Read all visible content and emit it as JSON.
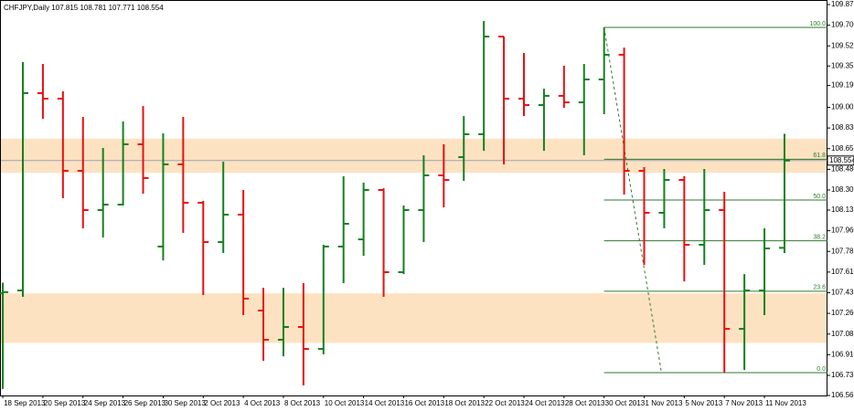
{
  "chart_data": {
    "type": "ohlc",
    "title": "CHFJPY,Daily  107.815 108.781 107.771 108.554",
    "categories": [
      "18 Sep 2013",
      null,
      "20 Sep 2013",
      null,
      "24 Sep 2013",
      null,
      "26 Sep 2013",
      null,
      "30 Sep 2013",
      null,
      "2 Oct 2013",
      null,
      "4 Oct 2013",
      null,
      "8 Oct 2013",
      null,
      "10 Oct 2013",
      null,
      "14 Oct 2013",
      null,
      "16 Oct 2013",
      null,
      "18 Oct 2013",
      null,
      "22 Oct 2013",
      null,
      "24 Oct 2013",
      null,
      "28 Oct 2013",
      null,
      "30 Oct 2013",
      null,
      "1 Nov 2013",
      null,
      "5 Nov 2013",
      null,
      "7 Nov 2013",
      null,
      "11 Nov 2013",
      null
    ],
    "open": [
      107.43,
      107.454,
      109.125,
      109.078,
      108.467,
      108.135,
      108.181,
      108.692,
      107.826,
      108.522,
      108.197,
      107.864,
      108.096,
      107.284,
      107.037,
      107.145,
      106.959,
      107.826,
      107.887,
      108.305,
      107.609,
      108.135,
      108.429,
      108.583,
      108.777,
      109.604,
      109.078,
      109.024,
      109.102,
      109.047,
      109.241,
      109.45,
      108.467,
      108.112,
      108.39,
      107.841,
      108.135,
      107.129,
      107.454,
      107.815
    ],
    "high": [
      107.52,
      109.388,
      109.372,
      109.14,
      108.924,
      108.661,
      108.885,
      109.016,
      108.785,
      108.924,
      108.212,
      108.545,
      108.305,
      107.477,
      107.477,
      107.516,
      107.841,
      108.421,
      108.367,
      108.32,
      108.174,
      108.599,
      108.692,
      108.931,
      109.736,
      109.604,
      109.465,
      109.163,
      109.357,
      109.372,
      109.682,
      109.511,
      108.498,
      108.483,
      108.421,
      108.483,
      108.29,
      107.593,
      107.98,
      108.781
    ],
    "low": [
      106.62,
      107.4,
      108.908,
      108.235,
      107.98,
      107.903,
      108.174,
      108.274,
      107.709,
      107.942,
      107.416,
      107.771,
      107.246,
      106.859,
      106.897,
      106.65,
      106.913,
      107.516,
      107.748,
      107.4,
      107.593,
      107.864,
      108.158,
      108.382,
      108.637,
      108.522,
      108.931,
      108.637,
      109.001,
      108.599,
      108.947,
      108.266,
      107.671,
      107.98,
      107.532,
      107.671,
      106.758,
      106.781,
      107.246,
      107.771
    ],
    "close": [
      107.44,
      109.125,
      109.078,
      108.467,
      108.135,
      108.181,
      108.692,
      108.406,
      108.522,
      108.197,
      107.864,
      108.096,
      107.385,
      107.037,
      107.145,
      106.959,
      107.826,
      108.019,
      108.305,
      107.609,
      108.135,
      108.429,
      108.39,
      108.777,
      109.604,
      109.078,
      109.024,
      109.102,
      109.047,
      109.241,
      109.45,
      108.467,
      108.112,
      108.39,
      107.841,
      108.135,
      107.129,
      107.454,
      107.81,
      108.554
    ],
    "up_color": "#14801e",
    "down_color": "#e81010",
    "ylim": [
      106.565,
      109.875
    ],
    "yticks": [
      106.565,
      106.735,
      {
        "value": 106.91,
        "label": "106.910"
      },
      107.085,
      {
        "value": 107.26,
        "label": "107.260"
      },
      107.435,
      {
        "value": 107.61,
        "label": "107.610"
      },
      107.785,
      {
        "value": 107.96,
        "label": "107.960"
      },
      108.135,
      108.305,
      {
        "value": 108.48,
        "label": "108.480"
      },
      108.655,
      {
        "value": 108.83,
        "label": "108.830"
      },
      109.005,
      {
        "value": 109.19,
        "label": "109.190"
      },
      109.355,
      109.525,
      {
        "value": 109.7,
        "label": "109.700"
      },
      109.875
    ],
    "last_price": 108.554,
    "zones": [
      {
        "from": 108.45,
        "to": 108.74
      },
      {
        "from": 107.01,
        "to": 107.43
      }
    ],
    "zone_color": "#fde2c2",
    "fib": {
      "high": 109.682,
      "low": 106.758,
      "color": "#2d7a2d",
      "levels": [
        {
          "value": 100,
          "label": "100.0"
        },
        61.8,
        {
          "value": 50,
          "label": "50.0"
        },
        38.2,
        23.6,
        {
          "value": 0,
          "label": "0.0"
        }
      ]
    }
  }
}
